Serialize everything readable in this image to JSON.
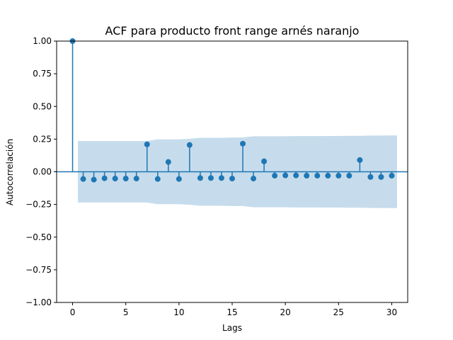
{
  "chart_data": {
    "type": "scatter",
    "title": "ACF para producto front range arnés naranjo",
    "xlabel": "Lags",
    "ylabel": "Autocorrelación",
    "xlim": [
      -1.5,
      31.5
    ],
    "ylim": [
      -1.0,
      1.0
    ],
    "xticks": [
      0,
      5,
      10,
      15,
      20,
      25,
      30
    ],
    "xtick_labels": [
      "0",
      "5",
      "10",
      "15",
      "20",
      "25",
      "30"
    ],
    "yticks": [
      -1.0,
      -0.75,
      -0.5,
      -0.25,
      0.0,
      0.25,
      0.5,
      0.75,
      1.0
    ],
    "ytick_labels": [
      "−1.00",
      "−0.75",
      "−0.50",
      "−0.25",
      "0.00",
      "0.25",
      "0.50",
      "0.75",
      "1.00"
    ],
    "grid": false,
    "series": [
      {
        "x": [
          0,
          1,
          2,
          3,
          4,
          5,
          6,
          7,
          8,
          9,
          10,
          11,
          12,
          13,
          14,
          15,
          16,
          17,
          18,
          19,
          20,
          21,
          22,
          23,
          24,
          25,
          26,
          27,
          28,
          29,
          30
        ],
        "values": [
          1.0,
          -0.055,
          -0.06,
          -0.05,
          -0.052,
          -0.052,
          -0.052,
          0.21,
          -0.055,
          0.075,
          -0.055,
          0.205,
          -0.048,
          -0.048,
          -0.048,
          -0.052,
          0.215,
          -0.052,
          0.08,
          -0.03,
          -0.028,
          -0.028,
          -0.03,
          -0.03,
          -0.03,
          -0.03,
          -0.03,
          0.09,
          -0.04,
          -0.04,
          -0.03
        ]
      }
    ],
    "confidence_band": {
      "x": [
        0.5,
        1,
        2,
        3,
        4,
        5,
        6,
        7,
        8,
        9,
        10,
        11,
        12,
        13,
        14,
        15,
        16,
        17,
        18,
        19,
        20,
        21,
        22,
        23,
        24,
        25,
        26,
        27,
        28,
        29,
        30,
        30.5
      ],
      "upper": [
        0.235,
        0.235,
        0.235,
        0.235,
        0.235,
        0.235,
        0.235,
        0.235,
        0.248,
        0.248,
        0.248,
        0.252,
        0.26,
        0.26,
        0.26,
        0.262,
        0.262,
        0.272,
        0.272,
        0.272,
        0.272,
        0.273,
        0.273,
        0.273,
        0.274,
        0.274,
        0.275,
        0.275,
        0.277,
        0.277,
        0.278,
        0.278
      ]
    },
    "colors": {
      "stem": "#1f77b4",
      "band": "#c6dcec",
      "zero_line": "#1f77b4"
    }
  }
}
